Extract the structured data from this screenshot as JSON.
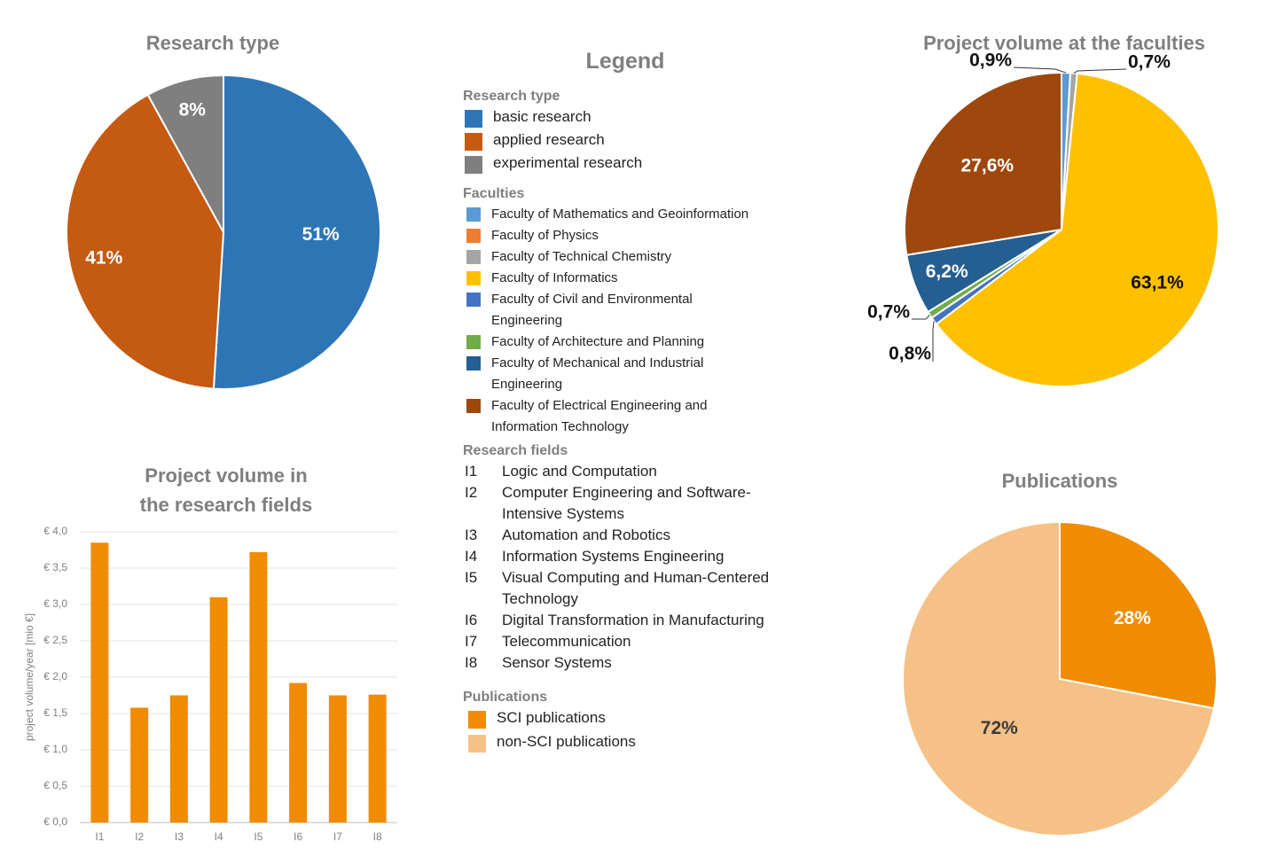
{
  "legend": {
    "title": "Legend",
    "research_type": {
      "title": "Research type",
      "items": [
        {
          "label": "basic research",
          "color": "#2e75b6"
        },
        {
          "label": "applied research",
          "color": "#c55a11"
        },
        {
          "label": "experimental research",
          "color": "#7f7f7f"
        }
      ]
    },
    "faculties": {
      "title": "Faculties",
      "items": [
        {
          "label": "Faculty of Mathematics and Geoinformation",
          "color": "#5b9bd5"
        },
        {
          "label": "Faculty of Physics",
          "color": "#ed7d31"
        },
        {
          "label": "Faculty of Technical Chemistry",
          "color": "#a5a5a5"
        },
        {
          "label": "Faculty of Informatics",
          "color": "#ffc000"
        },
        {
          "label": "Faculty of Civil and Environmental Engineering",
          "color": "#4472c4"
        },
        {
          "label": "Faculty of Architecture and Planning",
          "color": "#70ad47"
        },
        {
          "label": "Faculty of Mechanical and Industrial Engineering",
          "color": "#255e91"
        },
        {
          "label": "Faculty of Electrical Engineering and Information Technology",
          "color": "#9e480e"
        }
      ]
    },
    "research_fields": {
      "title": "Research fields",
      "items": [
        {
          "code": "I1",
          "label": "Logic and Computation"
        },
        {
          "code": "I2",
          "label": "Computer Engineering and Software-Intensive Systems"
        },
        {
          "code": "I3",
          "label": "Automation and Robotics"
        },
        {
          "code": "I4",
          "label": "Information Systems Engineering"
        },
        {
          "code": "I5",
          "label": "Visual Computing and Human-Centered Technology"
        },
        {
          "code": "I6",
          "label": "Digital Transformation in Manufacturing"
        },
        {
          "code": "I7",
          "label": "Telecommunication"
        },
        {
          "code": "I8",
          "label": "Sensor Systems"
        }
      ]
    },
    "publications": {
      "title": "Publications",
      "items": [
        {
          "label": "SCI publications",
          "color": "#f08c00"
        },
        {
          "label": "non-SCI publications",
          "color": "#f5c186"
        }
      ]
    }
  },
  "chart_data": [
    {
      "type": "pie",
      "title": "Research type",
      "slices": [
        {
          "name": "basic research",
          "value": 51,
          "label": "51%",
          "color": "#2e75b6"
        },
        {
          "name": "applied research",
          "value": 41,
          "label": "41%",
          "color": "#c55a11"
        },
        {
          "name": "experimental research",
          "value": 8,
          "label": "8%",
          "color": "#7f7f7f"
        }
      ]
    },
    {
      "type": "pie",
      "title": "Project volume at the faculties",
      "slices": [
        {
          "name": "Faculty of Mathematics and Geoinformation",
          "value": 0.9,
          "label": "0,9%",
          "color": "#5b9bd5"
        },
        {
          "name": "Faculty of Technical Chemistry",
          "value": 0.7,
          "label": "0,7%",
          "color": "#a5a5a5"
        },
        {
          "name": "Faculty of Informatics",
          "value": 63.1,
          "label": "63,1%",
          "color": "#ffc000"
        },
        {
          "name": "Faculty of Civil and Environmental Engineering",
          "value": 0.8,
          "label": "0,8%",
          "color": "#4472c4"
        },
        {
          "name": "Faculty of Architecture and Planning",
          "value": 0.7,
          "label": "0,7%",
          "color": "#70ad47"
        },
        {
          "name": "Faculty of Mechanical and Industrial Engineering",
          "value": 6.2,
          "label": "6,2%",
          "color": "#255e91"
        },
        {
          "name": "Faculty of Electrical Engineering and Information Technology",
          "value": 27.6,
          "label": "27,6%",
          "color": "#9e480e"
        }
      ]
    },
    {
      "type": "bar",
      "title": "Project volume in the research fields",
      "title_lines": [
        "Project volume in",
        "the research fields"
      ],
      "categories": [
        "I1",
        "I2",
        "I3",
        "I4",
        "I5",
        "I6",
        "I7",
        "I8"
      ],
      "values": [
        3.85,
        1.58,
        1.75,
        3.1,
        3.72,
        1.92,
        1.75,
        1.76
      ],
      "ylabel": "project volume/year [mio €]",
      "ylim": [
        0,
        4
      ],
      "yticks": [
        "€ 0,0",
        "€ 0,5",
        "€ 1,0",
        "€ 1,5",
        "€ 2,0",
        "€ 2,5",
        "€ 3,0",
        "€ 3,5",
        "€ 4,0"
      ],
      "color": "#f08c00",
      "grid": true
    },
    {
      "type": "pie",
      "title": "Publications",
      "slices": [
        {
          "name": "SCI publications",
          "value": 28,
          "label": "28%",
          "color": "#f08c00"
        },
        {
          "name": "non-SCI publications",
          "value": 72,
          "label": "72%",
          "color": "#f5c186"
        }
      ]
    }
  ]
}
